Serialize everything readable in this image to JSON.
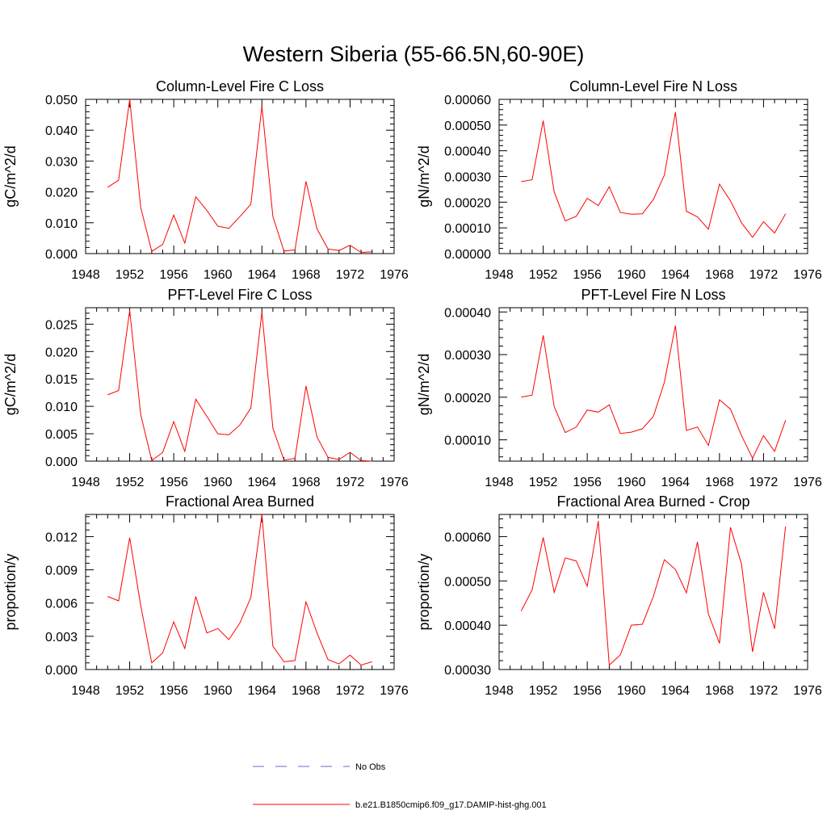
{
  "figure": {
    "title": "Western Siberia (55-66.5N,60-90E)"
  },
  "legend": {
    "items": [
      {
        "label": "No Obs",
        "color": "#6a6acd",
        "dash": "dashed"
      },
      {
        "label": "b.e21.B1850cmip6.f09_g17.DAMIP-hist-ghg.001",
        "color": "#ff0000",
        "dash": "solid"
      }
    ]
  },
  "chart_data": [
    {
      "type": "line",
      "title": "Column-Level Fire C Loss",
      "ylabel": "gC/m^2/d",
      "xlabel": "",
      "xlim": [
        1948,
        1976
      ],
      "ylim": [
        0,
        0.05
      ],
      "x_ticks": [
        1948,
        1952,
        1956,
        1960,
        1964,
        1968,
        1972,
        1976
      ],
      "y_ticks": [
        "0.000",
        "0.010",
        "0.020",
        "0.030",
        "0.040",
        "0.050"
      ],
      "series": [
        {
          "color": "#ff0000",
          "x": [
            1950,
            1951,
            1952,
            1953,
            1954,
            1955,
            1956,
            1957,
            1958,
            1959,
            1960,
            1961,
            1962,
            1963,
            1964,
            1965,
            1966,
            1967,
            1968,
            1969,
            1970,
            1971,
            1972,
            1973,
            1974
          ],
          "y": [
            0.0215,
            0.0238,
            0.05,
            0.015,
            0.0007,
            0.003,
            0.0125,
            0.0034,
            0.0184,
            0.014,
            0.0089,
            0.0082,
            0.012,
            0.016,
            0.0478,
            0.012,
            0.0008,
            0.0012,
            0.0234,
            0.008,
            0.0015,
            0.001,
            0.0027,
            0.0004,
            0.0006
          ]
        }
      ]
    },
    {
      "type": "line",
      "title": "Column-Level Fire N Loss",
      "ylabel": "gN/m^2/d",
      "xlabel": "",
      "xlim": [
        1948,
        1976
      ],
      "ylim": [
        0,
        0.0006
      ],
      "x_ticks": [
        1948,
        1952,
        1956,
        1960,
        1964,
        1968,
        1972,
        1976
      ],
      "y_ticks": [
        "0.00000",
        "0.00010",
        "0.00020",
        "0.00030",
        "0.00040",
        "0.00050",
        "0.00060"
      ],
      "series": [
        {
          "color": "#ff0000",
          "x": [
            1950,
            1951,
            1952,
            1953,
            1954,
            1955,
            1956,
            1957,
            1958,
            1959,
            1960,
            1961,
            1962,
            1963,
            1964,
            1965,
            1966,
            1967,
            1968,
            1969,
            1970,
            1971,
            1972,
            1973,
            1974
          ],
          "y": [
            0.00028,
            0.000287,
            0.000517,
            0.00024,
            0.000127,
            0.000145,
            0.000215,
            0.000187,
            0.00026,
            0.00016,
            0.000153,
            0.000155,
            0.00021,
            0.000305,
            0.00055,
            0.000165,
            0.000143,
            9.5e-05,
            0.00027,
            0.000205,
            0.00012,
            6.3e-05,
            0.000124,
            8e-05,
            0.000155
          ]
        }
      ]
    },
    {
      "type": "line",
      "title": "PFT-Level Fire C Loss",
      "ylabel": "gC/m^2/d",
      "xlabel": "",
      "xlim": [
        1948,
        1976
      ],
      "ylim": [
        0,
        0.028
      ],
      "x_ticks": [
        1948,
        1952,
        1956,
        1960,
        1964,
        1968,
        1972,
        1976
      ],
      "y_ticks": [
        "0.000",
        "0.005",
        "0.010",
        "0.015",
        "0.020",
        "0.025"
      ],
      "series": [
        {
          "color": "#ff0000",
          "x": [
            1950,
            1951,
            1952,
            1953,
            1954,
            1955,
            1956,
            1957,
            1958,
            1959,
            1960,
            1961,
            1962,
            1963,
            1964,
            1965,
            1966,
            1967,
            1968,
            1969,
            1970,
            1971,
            1972,
            1973,
            1974
          ],
          "y": [
            0.0121,
            0.0129,
            0.0275,
            0.0085,
            0.0001,
            0.0016,
            0.0072,
            0.0018,
            0.0113,
            0.0082,
            0.005,
            0.0048,
            0.0066,
            0.0097,
            0.0272,
            0.006,
            0.0002,
            0.0005,
            0.0137,
            0.0044,
            0.0007,
            0.0003,
            0.0016,
            0.0001,
            0.0
          ]
        }
      ]
    },
    {
      "type": "line",
      "title": "PFT-Level Fire N Loss",
      "ylabel": "gN/m^2/d",
      "xlabel": "",
      "xlim": [
        1948,
        1976
      ],
      "ylim": [
        5e-05,
        0.00041
      ],
      "x_ticks": [
        1948,
        1952,
        1956,
        1960,
        1964,
        1968,
        1972,
        1976
      ],
      "y_ticks": [
        "0.00010",
        "0.00020",
        "0.00030",
        "0.00040"
      ],
      "series": [
        {
          "color": "#ff0000",
          "x": [
            1950,
            1951,
            1952,
            1953,
            1954,
            1955,
            1956,
            1957,
            1958,
            1959,
            1960,
            1961,
            1962,
            1963,
            1964,
            1965,
            1966,
            1967,
            1968,
            1969,
            1970,
            1971,
            1972,
            1973,
            1974
          ],
          "y": [
            0.0002,
            0.000205,
            0.000345,
            0.000178,
            0.000117,
            0.00013,
            0.00017,
            0.000165,
            0.000182,
            0.000115,
            0.000118,
            0.000126,
            0.000155,
            0.000235,
            0.000368,
            0.000122,
            0.00013,
            8.7e-05,
            0.000194,
            0.000172,
            0.00011,
            5.7e-05,
            0.00011,
            7.3e-05,
            0.000146
          ]
        }
      ]
    },
    {
      "type": "line",
      "title": "Fractional Area Burned",
      "ylabel": "proportion/y",
      "xlabel": "",
      "xlim": [
        1948,
        1976
      ],
      "ylim": [
        0,
        0.014
      ],
      "x_ticks": [
        1948,
        1952,
        1956,
        1960,
        1964,
        1968,
        1972,
        1976
      ],
      "y_ticks": [
        "0.000",
        "0.003",
        "0.006",
        "0.009",
        "0.012"
      ],
      "series": [
        {
          "color": "#ff0000",
          "x": [
            1950,
            1951,
            1952,
            1953,
            1954,
            1955,
            1956,
            1957,
            1958,
            1959,
            1960,
            1961,
            1962,
            1963,
            1964,
            1965,
            1966,
            1967,
            1968,
            1969,
            1970,
            1971,
            1972,
            1973,
            1974
          ],
          "y": [
            0.0066,
            0.0062,
            0.0119,
            0.0058,
            0.0006,
            0.0015,
            0.0043,
            0.0019,
            0.0066,
            0.0033,
            0.0037,
            0.0027,
            0.0042,
            0.0065,
            0.014,
            0.0021,
            0.0007,
            0.0008,
            0.0061,
            0.0033,
            0.0009,
            0.0005,
            0.0013,
            0.0004,
            0.0007
          ]
        }
      ]
    },
    {
      "type": "line",
      "title": "Fractional Area Burned - Crop",
      "ylabel": "proportion/y",
      "xlabel": "",
      "xlim": [
        1948,
        1976
      ],
      "ylim": [
        0.0003,
        0.00065
      ],
      "x_ticks": [
        1948,
        1952,
        1956,
        1960,
        1964,
        1968,
        1972,
        1976
      ],
      "y_ticks": [
        "0.00030",
        "0.00040",
        "0.00050",
        "0.00060"
      ],
      "series": [
        {
          "color": "#ff0000",
          "x": [
            1950,
            1951,
            1952,
            1953,
            1954,
            1955,
            1956,
            1957,
            1958,
            1959,
            1960,
            1961,
            1962,
            1963,
            1964,
            1965,
            1966,
            1967,
            1968,
            1969,
            1970,
            1971,
            1972,
            1973,
            1974
          ],
          "y": [
            0.000432,
            0.00048,
            0.000598,
            0.000474,
            0.000552,
            0.000545,
            0.000488,
            0.000635,
            0.00031,
            0.000333,
            0.0004,
            0.000402,
            0.000465,
            0.000548,
            0.000526,
            0.000473,
            0.000588,
            0.000425,
            0.000359,
            0.000621,
            0.000538,
            0.00034,
            0.000474,
            0.000392,
            0.000623
          ]
        }
      ]
    }
  ]
}
